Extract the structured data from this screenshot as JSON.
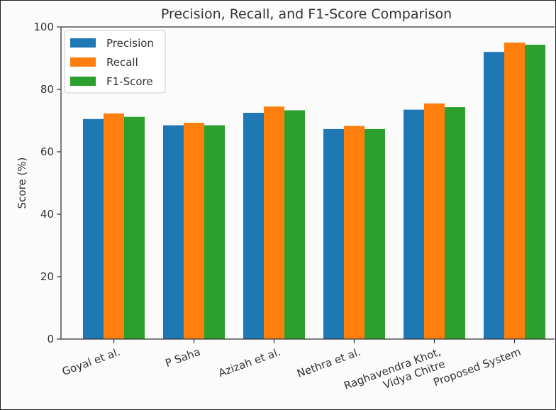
{
  "chart_data": {
    "type": "bar",
    "title": "Precision, Recall, and F1-Score Comparison",
    "xlabel": "",
    "ylabel": "Score (%)",
    "ylim": [
      0,
      100
    ],
    "yticks": [
      0,
      20,
      40,
      60,
      80,
      100
    ],
    "grid": false,
    "legend_position": "top-left",
    "categories": [
      "Goyal et al.",
      "P Saha",
      "Azizah et al.",
      "Nethra et al.",
      "Raghavendra Khot,\nVidya Chitre",
      "Proposed System"
    ],
    "series": [
      {
        "name": "Precision",
        "color": "#1f77b4",
        "values": [
          70.5,
          68.5,
          72.5,
          67.3,
          73.5,
          92.0
        ]
      },
      {
        "name": "Recall",
        "color": "#ff7f0e",
        "values": [
          72.3,
          69.3,
          74.5,
          68.3,
          75.5,
          95.0
        ]
      },
      {
        "name": "F1-Score",
        "color": "#2ca02c",
        "values": [
          71.2,
          68.5,
          73.3,
          67.3,
          74.3,
          94.3
        ]
      }
    ]
  }
}
